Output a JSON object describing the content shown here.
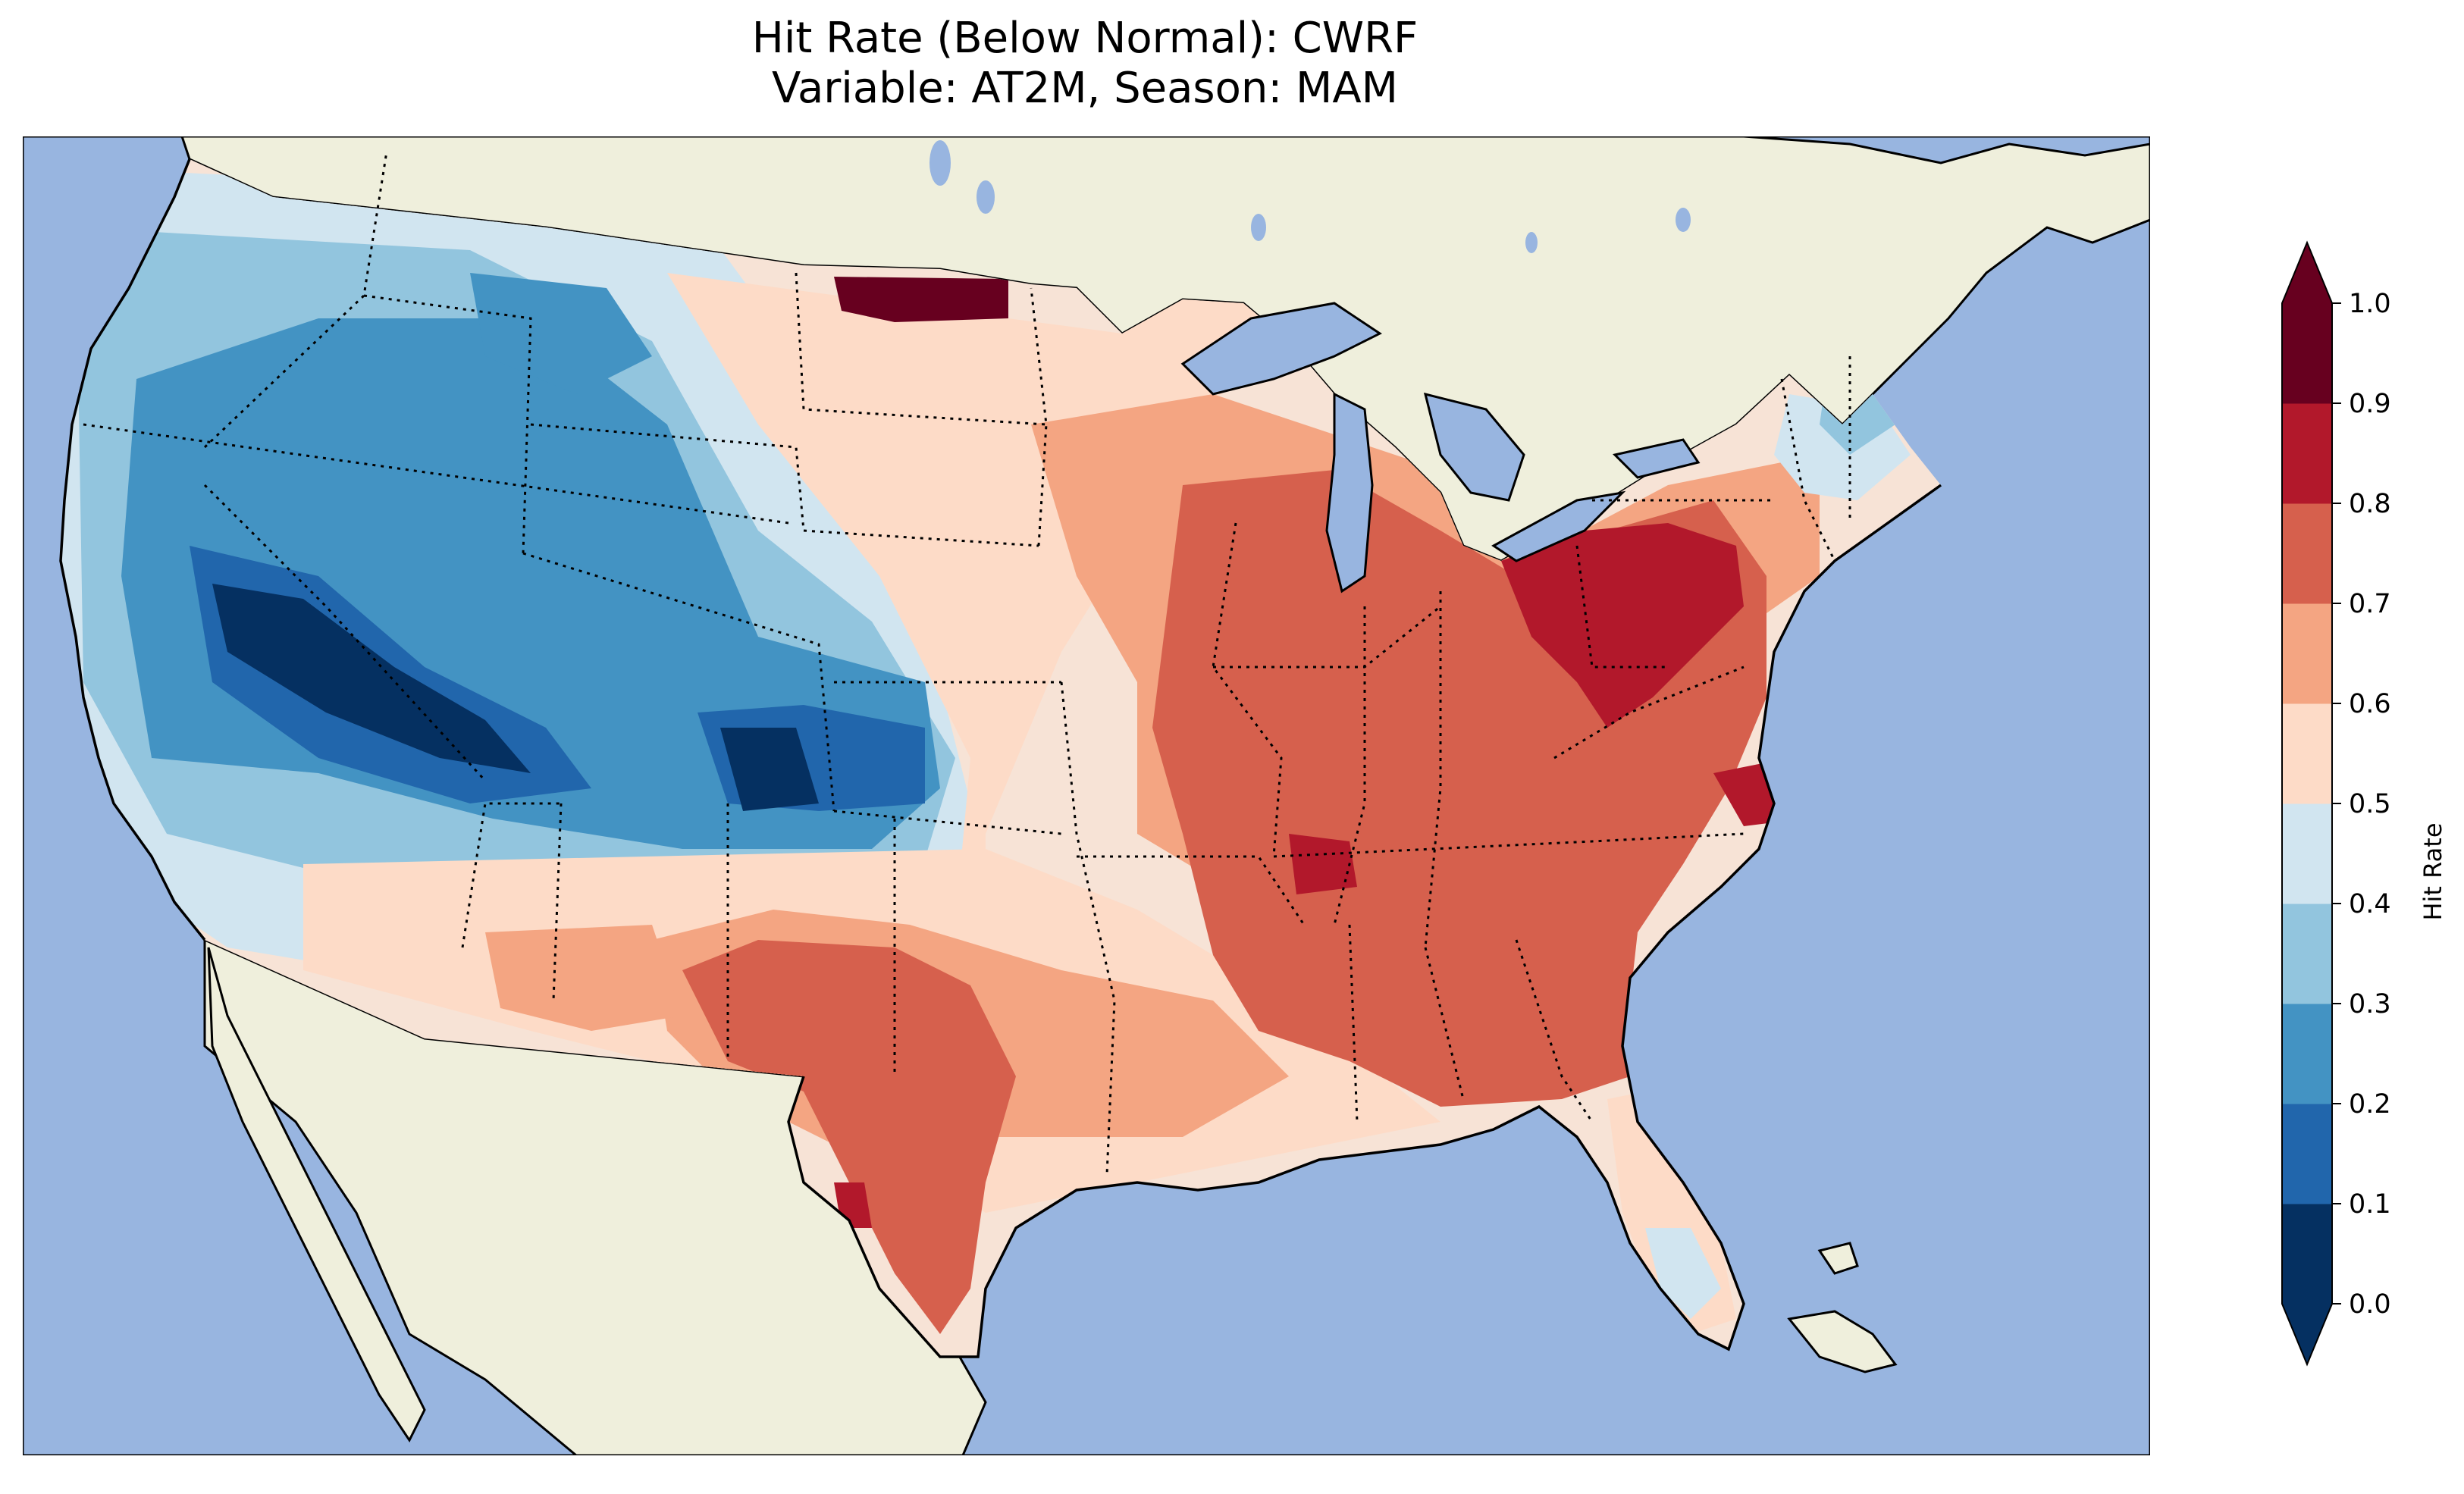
{
  "title": {
    "line1": "Hit Rate (Below Normal): CWRF",
    "line2": "Variable: AT2M, Season: MAM"
  },
  "colors": {
    "ocean": "#98b5e0",
    "land": "#efefdc",
    "bins": [
      "#053061",
      "#2166ac",
      "#4393c3",
      "#92c5de",
      "#d1e5f0",
      "#fddbc7",
      "#f4a582",
      "#d6604d",
      "#b2182b",
      "#67001f"
    ]
  },
  "colorbar": {
    "label": "Hit Rate",
    "ticks": [
      "0.0",
      "0.1",
      "0.2",
      "0.3",
      "0.4",
      "0.5",
      "0.6",
      "0.7",
      "0.8",
      "0.9",
      "1.0"
    ],
    "extend": "both"
  },
  "regions": [
    {
      "name": "Pacific Northwest coast",
      "level": "0.3-0.4"
    },
    {
      "name": "Great Basin / Nevada",
      "level": "0.0-0.1"
    },
    {
      "name": "Utah / Colorado",
      "level": "0.2-0.3"
    },
    {
      "name": "Southern Colorado",
      "level": "0.0-0.1"
    },
    {
      "name": "Northern Rockies",
      "level": "0.4-0.5"
    },
    {
      "name": "Northern Plains",
      "level": "0.5-0.6"
    },
    {
      "name": "North Dakota border",
      "level": "0.9-1.0"
    },
    {
      "name": "Texas",
      "level": "0.7-0.8"
    },
    {
      "name": "Southeast",
      "level": "0.7-0.8"
    },
    {
      "name": "Ohio Valley / Pennsylvania",
      "level": "0.8-0.9"
    },
    {
      "name": "North Carolina coast",
      "level": "0.9-1.0"
    },
    {
      "name": "Florida peninsula",
      "level": "0.5-0.6"
    },
    {
      "name": "New England",
      "level": "0.3-0.4"
    }
  ]
}
